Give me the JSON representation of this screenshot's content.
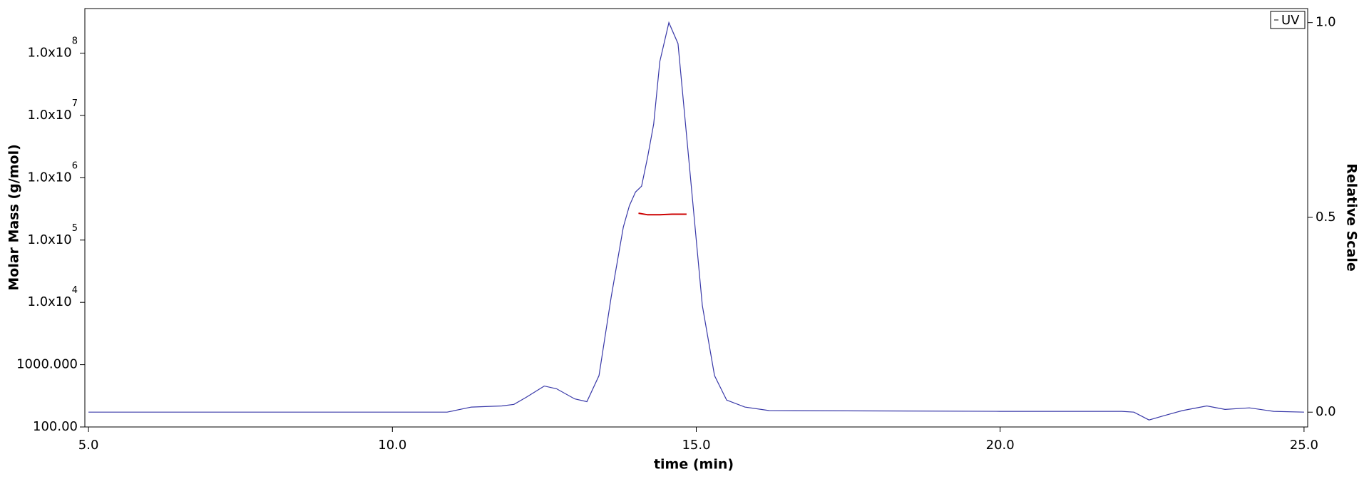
{
  "chart_data": {
    "type": "line",
    "xlabel": "time (min)",
    "ylabel": "Molar Mass (g/mol)",
    "y2label": "Relative Scale",
    "xlim": [
      4.94,
      25.06
    ],
    "xticks": [
      {
        "value": 5,
        "label": "5.0"
      },
      {
        "value": 10,
        "label": "10.0"
      },
      {
        "value": 15,
        "label": "15.0"
      },
      {
        "value": 20,
        "label": "20.0"
      },
      {
        "value": 25,
        "label": "25.0"
      }
    ],
    "ylim": [
      100,
      520000000
    ],
    "ylog": true,
    "yticks": [
      {
        "value": 100,
        "label": "100.00"
      },
      {
        "value": 1000,
        "label": "1000.000"
      },
      {
        "value": 10000,
        "label": "1.0x10",
        "sup": "4"
      },
      {
        "value": 100000,
        "label": "1.0x10",
        "sup": "5"
      },
      {
        "value": 1000000,
        "label": "1.0x10",
        "sup": "6"
      },
      {
        "value": 10000000,
        "label": "1.0x10",
        "sup": "7"
      },
      {
        "value": 100000000,
        "label": "1.0x10",
        "sup": "8"
      }
    ],
    "y2lim": [
      -0.038,
      1.036
    ],
    "y2ticks": [
      {
        "value": 0,
        "label": "0.0"
      },
      {
        "value": 0.5,
        "label": "0.5"
      },
      {
        "value": 1,
        "label": "1.0"
      }
    ],
    "legend": "top-right",
    "series": [
      {
        "name": "UV",
        "color": "#3838a8",
        "axis": "y2",
        "x": [
          5.0,
          10.9,
          11.3,
          11.8,
          12.0,
          12.2,
          12.5,
          12.7,
          13.0,
          13.2,
          13.4,
          13.6,
          13.8,
          13.9,
          14.0,
          14.1,
          14.2,
          14.3,
          14.4,
          14.55,
          14.7,
          14.9,
          15.1,
          15.3,
          15.5,
          15.8,
          16.2,
          20.0,
          22.0,
          22.2,
          22.45,
          22.7,
          23.0,
          23.4,
          23.7,
          24.1,
          24.5,
          25.0
        ],
        "values": [
          0.0,
          0.0,
          0.013,
          0.016,
          0.02,
          0.038,
          0.067,
          0.06,
          0.034,
          0.027,
          0.094,
          0.296,
          0.475,
          0.53,
          0.565,
          0.58,
          0.655,
          0.74,
          0.9,
          1.0,
          0.946,
          0.61,
          0.274,
          0.094,
          0.031,
          0.013,
          0.004,
          0.002,
          0.002,
          0.0,
          -0.02,
          -0.009,
          0.004,
          0.016,
          0.007,
          0.011,
          0.002,
          0.0
        ]
      },
      {
        "color": "#cc0000",
        "x": [
          14.05,
          14.2,
          14.4,
          14.6,
          14.84
        ],
        "values": [
          270000,
          255000,
          255000,
          260000,
          260000
        ]
      }
    ]
  }
}
